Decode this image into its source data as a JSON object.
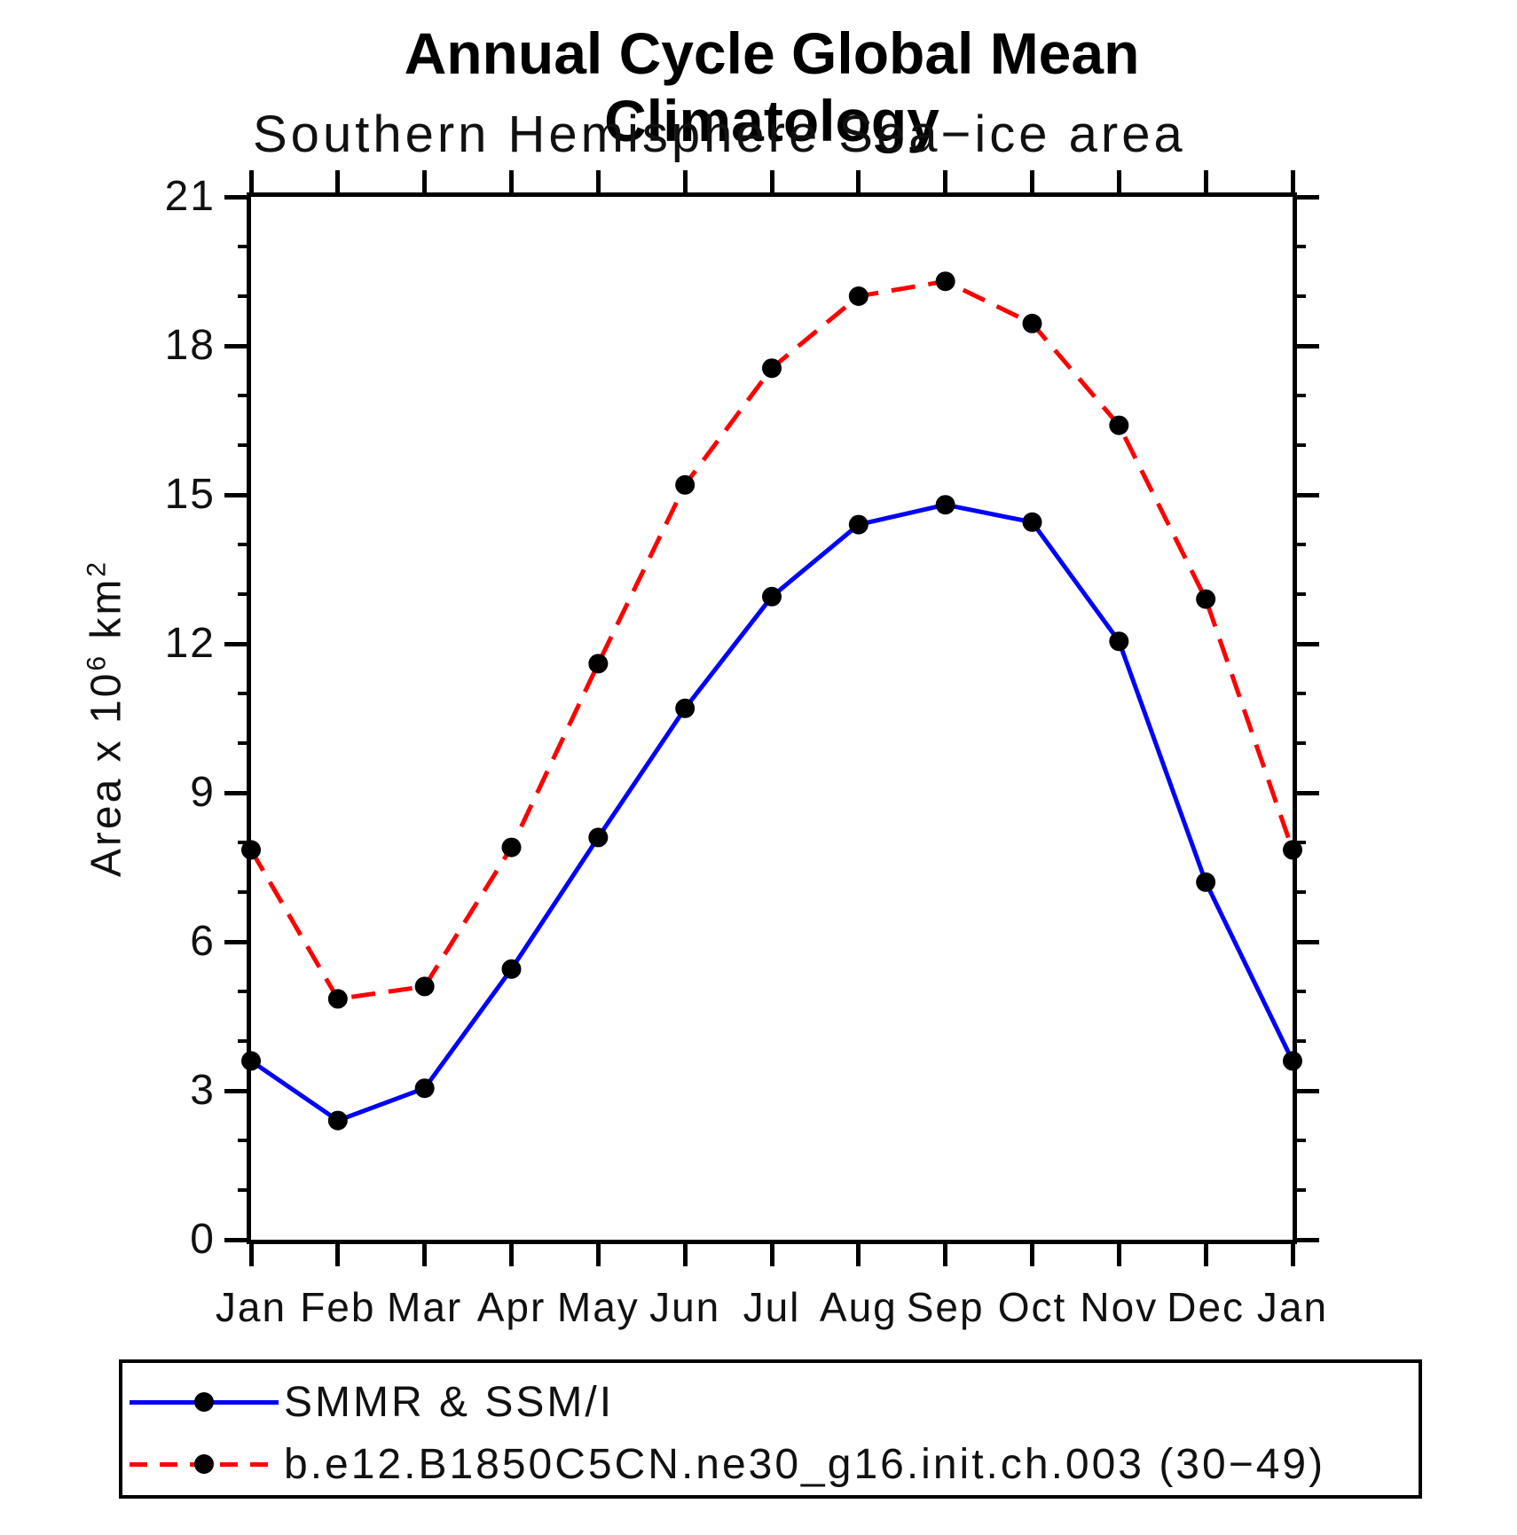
{
  "title": "Annual Cycle Global Mean Climatology",
  "subtitle": "Southern Hemisphere Sea−ice area",
  "y_axis_label_parts": {
    "base1": "Area x 10",
    "sup1": "6",
    "base2": " km",
    "sup2": "2"
  },
  "chart_data": {
    "type": "line",
    "title": "Annual Cycle Global Mean Climatology",
    "subtitle": "Southern Hemisphere Sea−ice area",
    "ylabel": "Area x 10^6 km^2",
    "ylim": [
      0,
      21
    ],
    "y_major_ticks": [
      0,
      3,
      6,
      9,
      12,
      15,
      18,
      21
    ],
    "y_minor_tick_interval": 1,
    "grid": false,
    "legend_position": "bottom",
    "x_tick_labels": [
      "Jan",
      "Feb",
      "Mar",
      "Apr",
      "May",
      "Jun",
      "Jul",
      "Aug",
      "Sep",
      "Oct",
      "Nov",
      "Dec",
      "Jan"
    ],
    "series": [
      {
        "name": "SMMR & SSM/I",
        "color": "#0000ff",
        "style": "solid",
        "marker": "circle",
        "marker_color": "#000000",
        "values": [
          3.6,
          2.4,
          3.05,
          5.45,
          8.1,
          10.7,
          12.95,
          14.4,
          14.8,
          14.45,
          12.05,
          7.2,
          3.6
        ]
      },
      {
        "name": "b.e12.B1850C5CN.ne30_g16.init.ch.003 (30−49)",
        "color": "#ff0000",
        "style": "dashed",
        "marker": "circle",
        "marker_color": "#000000",
        "values": [
          7.85,
          4.85,
          5.1,
          7.9,
          11.6,
          15.2,
          17.55,
          19.0,
          19.3,
          18.45,
          16.4,
          12.9,
          7.85
        ]
      }
    ]
  }
}
